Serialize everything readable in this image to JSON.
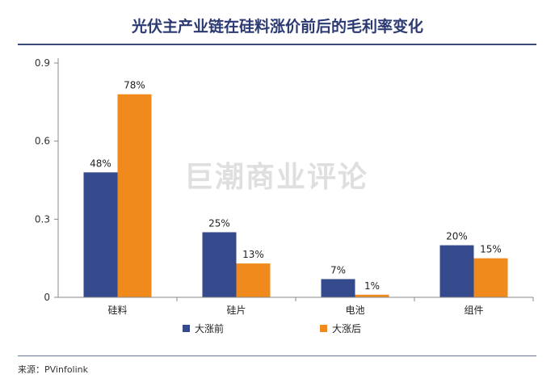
{
  "title": "光伏主产业链在硅料涨价前后的毛利率变化",
  "watermark": "巨潮商业评论",
  "source": "来源：PVinfolink",
  "colors": {
    "before": "#354a8c",
    "after": "#f08a1c",
    "title": "#2c3a73",
    "axis": "#888888"
  },
  "chart_data": {
    "type": "bar",
    "title": "光伏主产业链在硅料涨价前后的毛利率变化",
    "categories": [
      "硅料",
      "硅片",
      "电池",
      "组件"
    ],
    "series": [
      {
        "name": "大涨前",
        "values": [
          0.48,
          0.25,
          0.07,
          0.2
        ],
        "labels": [
          "48%",
          "25%",
          "7%",
          "20%"
        ],
        "color": "#354a8c"
      },
      {
        "name": "大涨后",
        "values": [
          0.78,
          0.13,
          0.01,
          0.15
        ],
        "labels": [
          "78%",
          "13%",
          "1%",
          "15%"
        ],
        "color": "#f08a1c"
      }
    ],
    "yticks": [
      0,
      0.3,
      0.6,
      0.9
    ],
    "ytick_labels": [
      "0",
      "0.3",
      "0.6",
      "0.9"
    ],
    "ylim": [
      0,
      0.9
    ],
    "xlabel": "",
    "ylabel": "",
    "legend": "bottom",
    "grid": false
  }
}
